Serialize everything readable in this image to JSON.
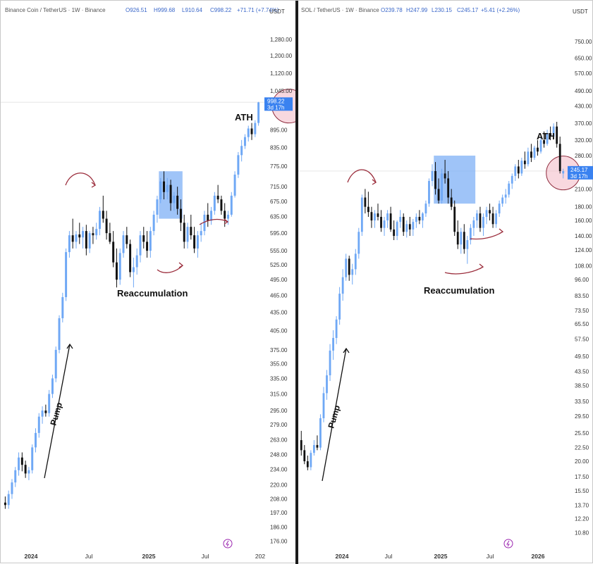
{
  "colors": {
    "up": "#6fa8f5",
    "down": "#111111",
    "box": "#7fb0f5",
    "circle_fill": "#f2b8c4",
    "circle_stroke": "#8e2a3c",
    "arrow_red": "#9b2d3c",
    "price_tag": "#3a82f0"
  },
  "chart_data": [
    {
      "type": "candlestick",
      "header": {
        "title": "Binance Coin / TetherUS · 1W · Binance",
        "o": "O926.51",
        "h": "H999.68",
        "l": "L910.64",
        "c": "C998.22",
        "chg": "+71.71 (+7.74%)"
      },
      "currency": "USDT",
      "scale": "log",
      "ylim": [
        170,
        1380
      ],
      "y_ticks": [
        "1,280.00",
        "1,200.00",
        "1,120.00",
        "1,045.00",
        "998.22",
        "895.00",
        "835.00",
        "775.00",
        "715.00",
        "675.00",
        "635.00",
        "595.00",
        "555.00",
        "525.00",
        "495.00",
        "465.00",
        "435.00",
        "405.00",
        "375.00",
        "355.00",
        "335.00",
        "315.00",
        "295.00",
        "279.00",
        "263.00",
        "248.00",
        "234.00",
        "220.00",
        "208.00",
        "197.00",
        "186.00",
        "176.00"
      ],
      "last_price": "998.22",
      "last_time": "3d 17h",
      "x_ticks": [
        "2024",
        "Jul",
        "2025",
        "Jul",
        "202"
      ],
      "annotations": {
        "ath": "ATH",
        "reaccumulation": "Reaccumulation",
        "pump": "Pump"
      },
      "highlight_range": {
        "from_week": 46,
        "to_week": 52,
        "low": 630,
        "high": 760
      },
      "ath_week": 84,
      "candles": [
        [
          205,
          210,
          200,
          203
        ],
        [
          203,
          215,
          200,
          212
        ],
        [
          212,
          225,
          208,
          222
        ],
        [
          222,
          236,
          218,
          233
        ],
        [
          233,
          250,
          228,
          245
        ],
        [
          245,
          250,
          232,
          238
        ],
        [
          238,
          242,
          226,
          230
        ],
        [
          230,
          236,
          224,
          233
        ],
        [
          233,
          258,
          230,
          255
        ],
        [
          255,
          275,
          250,
          270
        ],
        [
          270,
          292,
          265,
          288
        ],
        [
          288,
          300,
          280,
          295
        ],
        [
          295,
          302,
          288,
          292
        ],
        [
          292,
          320,
          288,
          315
        ],
        [
          315,
          340,
          310,
          335
        ],
        [
          335,
          380,
          330,
          375
        ],
        [
          375,
          430,
          370,
          425
        ],
        [
          425,
          470,
          418,
          462
        ],
        [
          462,
          560,
          455,
          552
        ],
        [
          552,
          600,
          540,
          590
        ],
        [
          590,
          630,
          560,
          575
        ],
        [
          575,
          600,
          560,
          592
        ],
        [
          592,
          620,
          570,
          585
        ],
        [
          585,
          610,
          560,
          600
        ],
        [
          600,
          615,
          545,
          560
        ],
        [
          560,
          600,
          550,
          595
        ],
        [
          595,
          610,
          570,
          590
        ],
        [
          590,
          620,
          580,
          605
        ],
        [
          605,
          660,
          590,
          650
        ],
        [
          650,
          690,
          620,
          630
        ],
        [
          630,
          650,
          580,
          595
        ],
        [
          595,
          620,
          570,
          575
        ],
        [
          575,
          600,
          520,
          530
        ],
        [
          530,
          560,
          480,
          495
        ],
        [
          495,
          560,
          485,
          550
        ],
        [
          550,
          600,
          540,
          590
        ],
        [
          590,
          610,
          560,
          570
        ],
        [
          570,
          580,
          500,
          510
        ],
        [
          510,
          540,
          480,
          520
        ],
        [
          520,
          560,
          505,
          545
        ],
        [
          545,
          600,
          530,
          590
        ],
        [
          590,
          610,
          560,
          575
        ],
        [
          575,
          600,
          540,
          555
        ],
        [
          555,
          610,
          540,
          600
        ],
        [
          600,
          650,
          590,
          640
        ],
        [
          640,
          690,
          620,
          680
        ],
        [
          680,
          740,
          670,
          730
        ],
        [
          730,
          760,
          680,
          700
        ],
        [
          700,
          740,
          680,
          720
        ],
        [
          720,
          735,
          650,
          670
        ],
        [
          670,
          700,
          650,
          690
        ],
        [
          690,
          715,
          640,
          655
        ],
        [
          655,
          680,
          600,
          620
        ],
        [
          620,
          640,
          560,
          575
        ],
        [
          575,
          620,
          560,
          610
        ],
        [
          610,
          640,
          580,
          590
        ],
        [
          590,
          610,
          550,
          560
        ],
        [
          560,
          600,
          540,
          590
        ],
        [
          590,
          620,
          575,
          600
        ],
        [
          600,
          650,
          590,
          640
        ],
        [
          640,
          670,
          610,
          625
        ],
        [
          625,
          660,
          615,
          650
        ],
        [
          650,
          700,
          640,
          690
        ],
        [
          690,
          720,
          670,
          680
        ],
        [
          680,
          690,
          640,
          650
        ],
        [
          650,
          670,
          610,
          630
        ],
        [
          630,
          650,
          615,
          640
        ],
        [
          640,
          700,
          635,
          690
        ],
        [
          690,
          760,
          685,
          750
        ],
        [
          750,
          820,
          740,
          810
        ],
        [
          810,
          860,
          790,
          840
        ],
        [
          840,
          880,
          830,
          870
        ],
        [
          870,
          910,
          855,
          900
        ],
        [
          900,
          920,
          860,
          880
        ],
        [
          880,
          930,
          870,
          920
        ],
        [
          920,
          1000,
          910,
          998
        ]
      ]
    },
    {
      "type": "candlestick",
      "header": {
        "title": "SOL / TetherUS · 1W · Binance",
        "o": "O239.78",
        "h": "H247.99",
        "l": "L230.15",
        "c": "C245.17",
        "chg": "+5.41 (+2.26%)"
      },
      "currency": "USDT",
      "scale": "log",
      "ylim": [
        9.3,
        900
      ],
      "y_ticks": [
        "750.00",
        "650.00",
        "570.00",
        "490.00",
        "430.00",
        "370.00",
        "320.00",
        "280.00",
        "245.17",
        "210.00",
        "180.00",
        "160.00",
        "140.00",
        "124.00",
        "108.00",
        "96.00",
        "83.50",
        "73.50",
        "65.50",
        "57.50",
        "49.50",
        "43.50",
        "38.50",
        "33.50",
        "29.50",
        "25.50",
        "22.50",
        "20.00",
        "17.50",
        "15.50",
        "13.70",
        "12.20",
        "10.80"
      ],
      "last_price": "245.17",
      "last_time": "3d 17h",
      "x_ticks": [
        "2024",
        "Jul",
        "2025",
        "Jul",
        "2026"
      ],
      "annotations": {
        "ath": "ATH",
        "reaccumulation": "Reaccumulation",
        "pump": "Pump"
      },
      "highlight_range": {
        "from_week": 42,
        "to_week": 54,
        "low": 185,
        "high": 280
      },
      "ath_week": 82,
      "candles": [
        [
          24,
          26,
          21,
          22
        ],
        [
          22,
          23,
          19.5,
          20
        ],
        [
          20,
          21,
          18.5,
          19
        ],
        [
          19,
          22,
          18.5,
          21.5
        ],
        [
          21.5,
          24,
          21,
          23
        ],
        [
          23,
          25,
          22,
          22.5
        ],
        [
          22.5,
          30,
          22,
          29
        ],
        [
          29,
          38,
          28,
          36
        ],
        [
          36,
          44,
          34,
          42
        ],
        [
          42,
          55,
          40,
          52
        ],
        [
          52,
          62,
          48,
          58
        ],
        [
          58,
          70,
          55,
          68
        ],
        [
          68,
          90,
          65,
          85
        ],
        [
          85,
          105,
          80,
          98
        ],
        [
          98,
          120,
          95,
          115
        ],
        [
          115,
          118,
          95,
          100
        ],
        [
          100,
          110,
          92,
          105
        ],
        [
          105,
          125,
          100,
          120
        ],
        [
          120,
          150,
          115,
          145
        ],
        [
          145,
          200,
          140,
          195
        ],
        [
          195,
          210,
          170,
          180
        ],
        [
          180,
          205,
          165,
          172
        ],
        [
          172,
          180,
          150,
          160
        ],
        [
          160,
          175,
          150,
          170
        ],
        [
          170,
          185,
          160,
          165
        ],
        [
          165,
          175,
          145,
          150
        ],
        [
          150,
          165,
          140,
          160
        ],
        [
          160,
          175,
          150,
          170
        ],
        [
          170,
          180,
          145,
          148
        ],
        [
          148,
          160,
          135,
          140
        ],
        [
          140,
          160,
          135,
          158
        ],
        [
          158,
          175,
          150,
          165
        ],
        [
          165,
          170,
          140,
          145
        ],
        [
          145,
          160,
          138,
          155
        ],
        [
          155,
          165,
          140,
          148
        ],
        [
          148,
          162,
          140,
          158
        ],
        [
          158,
          170,
          150,
          165
        ],
        [
          165,
          175,
          155,
          160
        ],
        [
          160,
          172,
          150,
          170
        ],
        [
          170,
          190,
          165,
          185
        ],
        [
          185,
          230,
          180,
          225
        ],
        [
          225,
          260,
          215,
          245
        ],
        [
          245,
          265,
          200,
          210
        ],
        [
          210,
          230,
          185,
          190
        ],
        [
          190,
          250,
          185,
          240
        ],
        [
          240,
          270,
          220,
          230
        ],
        [
          230,
          245,
          185,
          195
        ],
        [
          195,
          210,
          175,
          180
        ],
        [
          180,
          190,
          140,
          145
        ],
        [
          145,
          160,
          125,
          130
        ],
        [
          130,
          150,
          120,
          145
        ],
        [
          145,
          155,
          120,
          125
        ],
        [
          125,
          140,
          110,
          135
        ],
        [
          135,
          155,
          130,
          150
        ],
        [
          150,
          165,
          140,
          160
        ],
        [
          160,
          175,
          150,
          170
        ],
        [
          170,
          180,
          145,
          150
        ],
        [
          150,
          170,
          140,
          165
        ],
        [
          165,
          180,
          155,
          175
        ],
        [
          175,
          185,
          160,
          170
        ],
        [
          170,
          180,
          150,
          155
        ],
        [
          155,
          175,
          150,
          170
        ],
        [
          170,
          190,
          165,
          185
        ],
        [
          185,
          200,
          180,
          195
        ],
        [
          195,
          210,
          185,
          200
        ],
        [
          200,
          225,
          195,
          220
        ],
        [
          220,
          240,
          210,
          235
        ],
        [
          235,
          260,
          225,
          255
        ],
        [
          255,
          270,
          230,
          240
        ],
        [
          240,
          275,
          235,
          268
        ],
        [
          268,
          290,
          250,
          260
        ],
        [
          260,
          300,
          255,
          290
        ],
        [
          290,
          310,
          265,
          275
        ],
        [
          275,
          305,
          270,
          300
        ],
        [
          300,
          320,
          280,
          290
        ],
        [
          290,
          330,
          285,
          320
        ],
        [
          320,
          345,
          300,
          310
        ],
        [
          310,
          350,
          305,
          340
        ],
        [
          340,
          360,
          320,
          330
        ],
        [
          330,
          370,
          325,
          360
        ],
        [
          360,
          375,
          300,
          310
        ],
        [
          310,
          330,
          240,
          245
        ],
        [
          240,
          250,
          230,
          245
        ]
      ]
    }
  ]
}
